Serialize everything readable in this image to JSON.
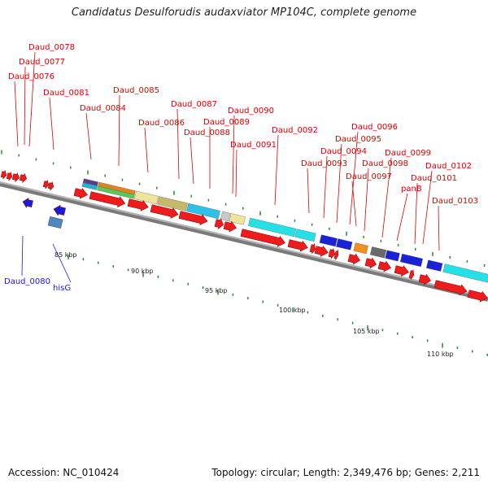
{
  "title": "Candidatus Desulforudis audaxviator MP104C, complete genome",
  "footer": {
    "accession": "Accession: NC_010424",
    "summary": "Topology: circular; Length: 2,349,476 bp; Genes: 2,211"
  },
  "colors": {
    "forward_arrow": "#ee1c1c",
    "reverse_arrow": "#1a1ad8",
    "forward_label": "#e00000",
    "reverse_label": "#1a1ad8",
    "backbone": "#8a8a8a",
    "tick": "#2a8a2a"
  },
  "labels_forward": [
    "Daud_0076",
    "Daud_0077",
    "Daud_0078",
    "Daud_0081",
    "Daud_0084",
    "Daud_0085",
    "Daud_0086",
    "Daud_0087",
    "Daud_0088",
    "Daud_0089",
    "Daud_0090",
    "Daud_0091",
    "Daud_0092",
    "Daud_0093",
    "Daud_0094",
    "Daud_0095",
    "Daud_0096",
    "Daud_0097",
    "Daud_0098",
    "Daud_0099",
    "panB",
    "Daud_0101",
    "Daud_0102",
    "Daud_0103"
  ],
  "labels_reverse": [
    "Daud_0080",
    "hisG"
  ],
  "scale_labels": [
    "85 kbp",
    "90 kbp",
    "95 kbp",
    "100 kbp",
    "105 kbp",
    "110 kbp"
  ]
}
